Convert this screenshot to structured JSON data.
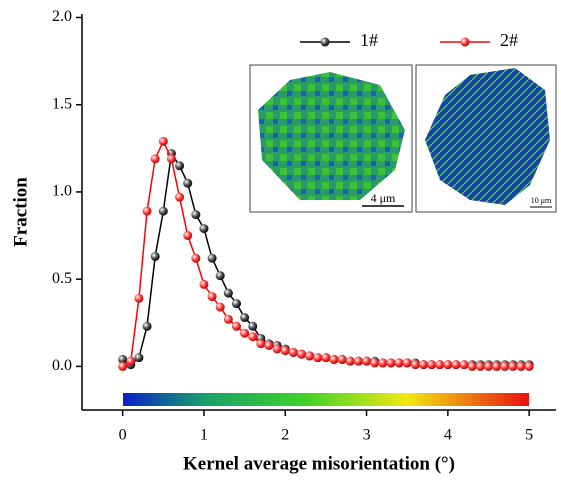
{
  "chart_data": {
    "type": "line",
    "x_label": "Kernel average misorientation (°)",
    "y_label": "Fraction",
    "x": [
      0,
      0.1,
      0.2,
      0.3,
      0.4,
      0.5,
      0.6,
      0.7,
      0.8,
      0.9,
      1.0,
      1.1,
      1.2,
      1.3,
      1.4,
      1.5,
      1.6,
      1.7,
      1.8,
      1.9,
      2.0,
      2.1,
      2.2,
      2.3,
      2.4,
      2.5,
      2.6,
      2.7,
      2.8,
      2.9,
      3.0,
      3.1,
      3.2,
      3.3,
      3.4,
      3.5,
      3.6,
      3.7,
      3.8,
      3.9,
      4.0,
      4.1,
      4.2,
      4.3,
      4.4,
      4.5,
      4.6,
      4.7,
      4.8,
      4.9,
      5.0
    ],
    "series": [
      {
        "name": "1#",
        "color": "#000000",
        "values": [
          0.04,
          0.01,
          0.05,
          0.23,
          0.63,
          0.89,
          1.22,
          1.15,
          1.05,
          0.87,
          0.79,
          0.62,
          0.52,
          0.42,
          0.36,
          0.28,
          0.23,
          0.16,
          0.13,
          0.12,
          0.1,
          0.08,
          0.07,
          0.06,
          0.05,
          0.05,
          0.04,
          0.04,
          0.03,
          0.03,
          0.03,
          0.03,
          0.02,
          0.02,
          0.02,
          0.02,
          0.02,
          0.01,
          0.01,
          0.01,
          0.01,
          0.01,
          0.01,
          0.01,
          0.01,
          0.01,
          0.01,
          0.01,
          0.01,
          0.01,
          0.01
        ]
      },
      {
        "name": "2#",
        "color": "#ff0000",
        "values": [
          0,
          0.03,
          0.39,
          0.89,
          1.19,
          1.29,
          1.19,
          0.97,
          0.75,
          0.62,
          0.47,
          0.4,
          0.34,
          0.27,
          0.23,
          0.19,
          0.17,
          0.13,
          0.12,
          0.1,
          0.09,
          0.08,
          0.07,
          0.06,
          0.05,
          0.05,
          0.04,
          0.04,
          0.03,
          0.03,
          0.03,
          0.02,
          0.02,
          0.02,
          0.02,
          0.02,
          0.01,
          0.01,
          0.01,
          0.01,
          0.01,
          0.01,
          0.01,
          0,
          0,
          0,
          0,
          0,
          0,
          0,
          0
        ]
      }
    ],
    "xlim": [
      -0.5,
      5.33
    ],
    "ylim": [
      -0.25,
      2.02
    ],
    "xticks": [
      0,
      1,
      2,
      3,
      4,
      5
    ],
    "yticks": [
      {
        "value": 0,
        "label": "0.0"
      },
      0.5,
      {
        "value": 1,
        "label": "1.0"
      },
      1.5,
      {
        "value": 2,
        "label": "2.0"
      }
    ],
    "legend": "top-right",
    "insets": [
      {
        "scale_bar": "4 μm"
      },
      {
        "scale_bar": "10 μm"
      }
    ]
  }
}
